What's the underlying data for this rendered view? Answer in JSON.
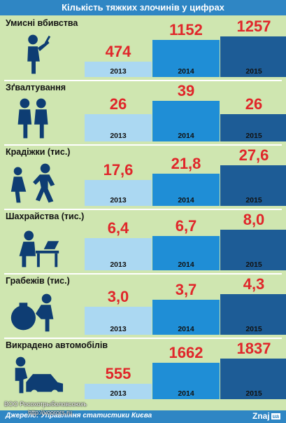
{
  "title": "Кількість тяжких злочинів у цифрах",
  "colors": {
    "background": "#cfe6b0",
    "header": "#2f86c4",
    "value_text": "#e0262a",
    "icon": "#0e3d73",
    "year_2013": "#abd8f2",
    "year_2014": "#1f8ed6",
    "year_2015": "#1d5c96"
  },
  "chart_data": [
    {
      "type": "bar",
      "title": "Умисні вбивства",
      "icon": "knife-attacker-icon",
      "categories": [
        "2013",
        "2014",
        "2015"
      ],
      "values": [
        474,
        1152,
        1257
      ],
      "value_labels": [
        "474",
        "1152",
        "1257"
      ]
    },
    {
      "type": "bar",
      "title": "Зґвалтування",
      "icon": "two-figures-icon",
      "categories": [
        "2013",
        "2014",
        "2015"
      ],
      "values": [
        26,
        39,
        26
      ],
      "value_labels": [
        "26",
        "39",
        "26"
      ]
    },
    {
      "type": "bar",
      "title": "Крадіжки (тис.)",
      "icon": "thief-running-icon",
      "categories": [
        "2013",
        "2014",
        "2015"
      ],
      "values": [
        17.6,
        21.8,
        27.6
      ],
      "value_labels": [
        "17,6",
        "21,8",
        "27,6"
      ]
    },
    {
      "type": "bar",
      "title": "Шахрайства (тис.)",
      "icon": "person-at-laptop-icon",
      "categories": [
        "2013",
        "2014",
        "2015"
      ],
      "values": [
        6.4,
        6.7,
        8.0
      ],
      "value_labels": [
        "6,4",
        "6,7",
        "8,0"
      ]
    },
    {
      "type": "bar",
      "title": "Грабежів  (тис.)",
      "icon": "money-bag-thief-icon",
      "categories": [
        "2013",
        "2014",
        "2015"
      ],
      "values": [
        3.0,
        3.7,
        4.3
      ],
      "value_labels": [
        "3,0",
        "3,7",
        "4,3"
      ]
    },
    {
      "type": "bar",
      "title": "Викрадено автомобілів",
      "icon": "car-thief-icon",
      "categories": [
        "2013",
        "2014",
        "2015"
      ],
      "values": [
        555,
        1662,
        1837
      ],
      "value_labels": [
        "555",
        "1662",
        "1837"
      ]
    }
  ],
  "footer": {
    "source": "Джерело: Управління статистики Києва",
    "brand": "Znaj",
    "brand_suffix": "ua",
    "watermark": "ВОО Росохотрыболовсоюзъ",
    "watermark_url": "http://voorors.ru"
  }
}
